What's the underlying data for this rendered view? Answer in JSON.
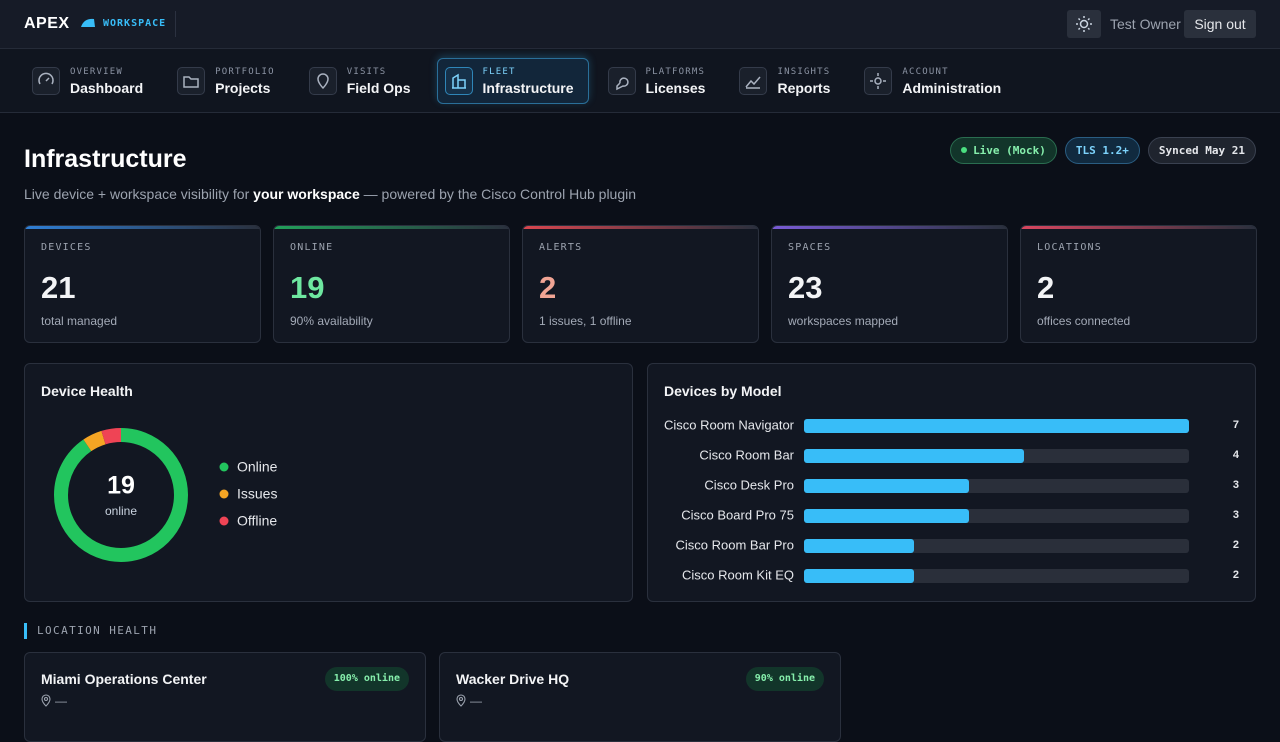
{
  "header": {
    "logo": "APEX",
    "workspace": "WORKSPACE",
    "user": "Test Owner",
    "sign_out": "Sign out"
  },
  "nav": [
    {
      "section": "OVERVIEW",
      "label": "Dashboard"
    },
    {
      "section": "PORTFOLIO",
      "label": "Projects"
    },
    {
      "section": "VISITS",
      "label": "Field Ops"
    },
    {
      "section": "FLEET",
      "label": "Infrastructure",
      "active": true
    },
    {
      "section": "PLATFORMS",
      "label": "Licenses"
    },
    {
      "section": "INSIGHTS",
      "label": "Reports"
    },
    {
      "section": "ACCOUNT",
      "label": "Administration"
    }
  ],
  "page": {
    "title": "Infrastructure",
    "subtitle": [
      "Live device + workspace visibility for ",
      "your workspace",
      " — powered by the Cisco Control Hub plugin"
    ],
    "badges": [
      "Live (Mock)",
      "TLS 1.2+",
      "Synced May 21"
    ]
  },
  "kpis": [
    {
      "label": "DEVICES",
      "value": 21,
      "note": "total managed",
      "color": "#f3f4f6",
      "accent": "#2f7fd6"
    },
    {
      "label": "ONLINE",
      "value": 19,
      "note": "90% availability",
      "color": "#6ee7a0",
      "accent": "#22a05a"
    },
    {
      "label": "ALERTS",
      "value": 2,
      "note": "1 issues, 1 offline",
      "color": "#f0a494",
      "accent": "#d9464f"
    },
    {
      "label": "SPACES",
      "value": 23,
      "note": "workspaces mapped",
      "color": "#f3f4f6",
      "accent": "#7a5cd6"
    },
    {
      "label": "LOCATIONS",
      "value": 2,
      "note": "offices connected",
      "color": "#f3f4f6",
      "accent": "#d9465f"
    }
  ],
  "charts": [
    {
      "type": "donut",
      "title": "Device Health",
      "categories": [
        "Online",
        "Issues",
        "Offline"
      ],
      "values": [
        19,
        1,
        1
      ],
      "colors": [
        "#22c55e",
        "#f5a524",
        "#ef4455"
      ],
      "center_label": "online"
    },
    {
      "type": "bar",
      "title": "Devices by Model",
      "categories": [
        "Cisco Room Navigator",
        "Cisco Room Bar",
        "Cisco Desk Pro",
        "Cisco Board Pro 75",
        "Cisco Room Bar Pro",
        "Cisco Room Kit EQ"
      ],
      "values": [
        7,
        4,
        3,
        3,
        2,
        2
      ],
      "color": "#38bdf8",
      "xlim": [
        0,
        7
      ]
    }
  ],
  "location_health": {
    "title": "LOCATION HEALTH",
    "locations": [
      {
        "name": "Miami Operations Center",
        "status": "100% online",
        "address": "—"
      },
      {
        "name": "Wacker Drive HQ",
        "status": "90% online",
        "address": "—"
      }
    ]
  }
}
